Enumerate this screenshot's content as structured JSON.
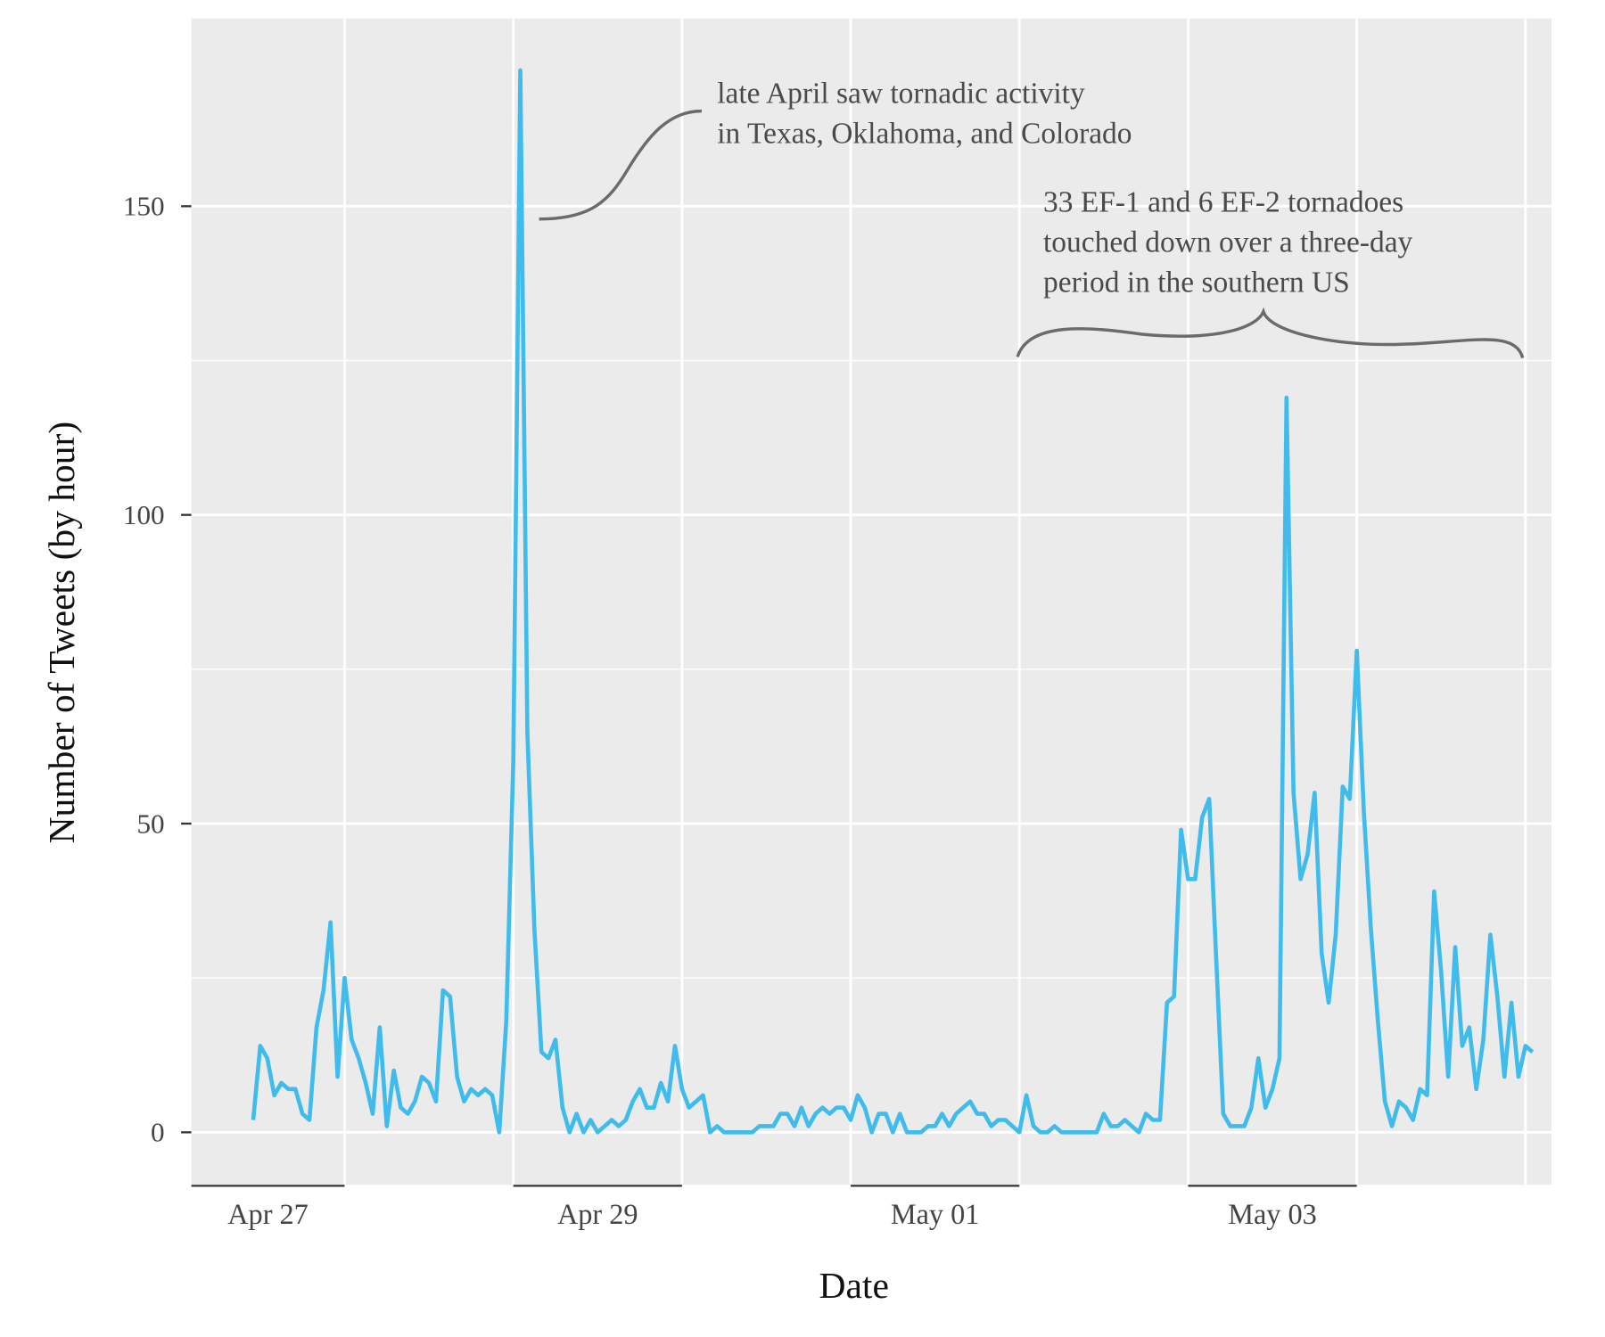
{
  "chart_data": {
    "type": "line",
    "x_label": "Date",
    "y_label": "Number of Tweets (by hour)",
    "color": "#3fbbec",
    "grid": true,
    "xlim": [
      2.2,
      195.7
    ],
    "ylim": [
      -8.5,
      180.4
    ],
    "yticks": [
      0,
      50,
      100,
      150
    ],
    "xticks": [
      {
        "value": 0,
        "label": "Apr 27"
      },
      {
        "value": 48,
        "label": "Apr 29"
      },
      {
        "value": 96,
        "label": "May 01"
      },
      {
        "value": 144,
        "label": "May 03"
      }
    ],
    "x": [
      11,
      12,
      13,
      14,
      15,
      16,
      17,
      18,
      19,
      20,
      21,
      22,
      23,
      24,
      25,
      26,
      27,
      28,
      29,
      30,
      31,
      32,
      33,
      34,
      35,
      36,
      37,
      38,
      39,
      40,
      41,
      42,
      43,
      44,
      45,
      46,
      47,
      48,
      49,
      50,
      51,
      52,
      53,
      54,
      55,
      56,
      57,
      58,
      59,
      60,
      61,
      62,
      63,
      64,
      65,
      66,
      67,
      68,
      69,
      70,
      71,
      72,
      73,
      74,
      75,
      76,
      77,
      78,
      79,
      80,
      81,
      82,
      83,
      84,
      85,
      86,
      87,
      88,
      89,
      90,
      91,
      92,
      93,
      94,
      95,
      96,
      97,
      98,
      99,
      100,
      101,
      102,
      103,
      104,
      105,
      106,
      107,
      108,
      109,
      110,
      111,
      112,
      113,
      114,
      115,
      116,
      117,
      118,
      119,
      120,
      121,
      122,
      123,
      124,
      125,
      126,
      127,
      128,
      129,
      130,
      131,
      132,
      133,
      134,
      135,
      136,
      137,
      138,
      139,
      140,
      141,
      142,
      143,
      144,
      145,
      146,
      147,
      148,
      149,
      150,
      151,
      152,
      153,
      154,
      155,
      156,
      157,
      158,
      159,
      160,
      161,
      162,
      163,
      164,
      165,
      166,
      167,
      168,
      169,
      170,
      171,
      172,
      173,
      174,
      175,
      176,
      177,
      178,
      179,
      180,
      181,
      182,
      183,
      184,
      185,
      186,
      187,
      188,
      189,
      190,
      191,
      192,
      193
    ],
    "values": [
      2,
      14,
      12,
      6,
      8,
      7,
      7,
      3,
      2,
      17,
      23,
      34,
      9,
      25,
      15,
      12,
      8,
      3,
      17,
      1,
      10,
      4,
      3,
      5,
      9,
      8,
      5,
      23,
      22,
      9,
      5,
      7,
      6,
      7,
      6,
      0,
      18,
      60,
      172,
      65,
      33,
      13,
      12,
      15,
      4,
      0,
      3,
      0,
      2,
      0,
      1,
      2,
      1,
      2,
      5,
      7,
      4,
      4,
      8,
      5,
      14,
      7,
      4,
      5,
      6,
      0,
      1,
      0,
      0,
      0,
      0,
      0,
      1,
      1,
      1,
      3,
      3,
      1,
      4,
      1,
      3,
      4,
      3,
      4,
      4,
      2,
      6,
      4,
      0,
      3,
      3,
      0,
      3,
      0,
      0,
      0,
      1,
      1,
      3,
      1,
      3,
      4,
      5,
      3,
      3,
      1,
      2,
      2,
      1,
      0,
      6,
      1,
      0,
      0,
      1,
      0,
      0,
      0,
      0,
      0,
      0,
      3,
      1,
      1,
      2,
      1,
      0,
      3,
      2,
      2,
      21,
      22,
      49,
      41,
      41,
      51,
      54,
      28,
      3,
      1,
      1,
      1,
      4,
      12,
      4,
      7,
      12,
      119,
      55,
      41,
      45,
      55,
      29,
      21,
      32,
      56,
      54,
      78,
      52,
      33,
      18,
      5,
      1,
      5,
      4,
      2,
      7,
      6,
      39,
      26,
      9,
      30,
      14,
      17,
      7,
      15,
      32,
      22,
      9,
      21,
      9,
      14,
      13
    ],
    "annotations": [
      {
        "lines": [
          "late April saw tornadic activity",
          "in Texas, Oklahoma, and Colorado"
        ]
      },
      {
        "lines": [
          "33 EF-1 and 6 EF-2 tornadoes",
          "touched down over a three-day",
          "period in the southern US"
        ]
      }
    ]
  }
}
